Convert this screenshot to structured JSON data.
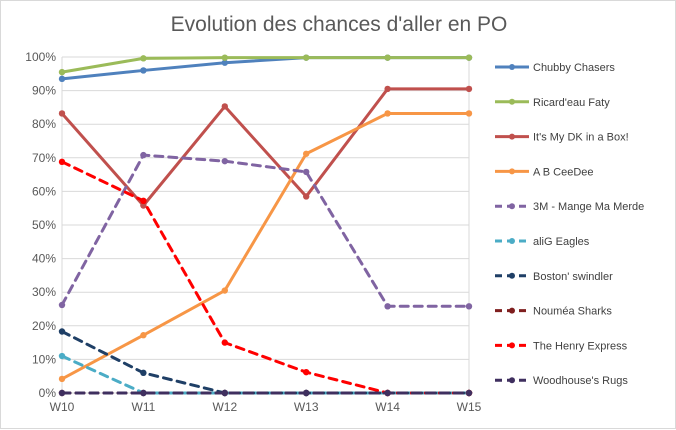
{
  "chart_data": {
    "type": "line",
    "title": "Evolution des chances d'aller en PO",
    "xlabel": "",
    "ylabel": "",
    "categories": [
      "W10",
      "W11",
      "W12",
      "W13",
      "W14",
      "W15"
    ],
    "y_ticks": [
      "0%",
      "10%",
      "20%",
      "30%",
      "40%",
      "50%",
      "60%",
      "70%",
      "80%",
      "90%",
      "100%"
    ],
    "ylim": [
      0,
      100
    ],
    "grid": "horizontal",
    "legend_position": "right",
    "series": [
      {
        "name": "Chubby Chasers",
        "color": "#4f81bd",
        "dashed": false,
        "values": [
          93.5,
          96,
          98.3,
          99.8,
          99.8,
          99.8
        ]
      },
      {
        "name": "Ricard'eau Faty",
        "color": "#9bbb59",
        "dashed": false,
        "values": [
          95.5,
          99.6,
          99.8,
          99.8,
          99.8,
          99.8
        ]
      },
      {
        "name": "It's My DK in a Box!",
        "color": "#c0504d",
        "dashed": false,
        "values": [
          83.2,
          55.8,
          85.3,
          58.5,
          90.5,
          90.5
        ]
      },
      {
        "name": "A B CeeDee",
        "color": "#f79646",
        "dashed": false,
        "values": [
          4.2,
          17.2,
          30.5,
          71.2,
          83.2,
          83.2
        ]
      },
      {
        "name": "3M - Mange Ma Merde",
        "color": "#8064a2",
        "dashed": true,
        "values": [
          26.2,
          70.8,
          69,
          65.8,
          25.8,
          25.8
        ]
      },
      {
        "name": "aliG Eagles",
        "color": "#4bacc6",
        "dashed": true,
        "values": [
          11,
          0,
          0,
          0,
          0,
          0
        ]
      },
      {
        "name": "Boston' swindler",
        "color": "#1f3f66",
        "dashed": true,
        "values": [
          18.3,
          6,
          0,
          0,
          0,
          0
        ]
      },
      {
        "name": "Nouméa Sharks",
        "color": "#7f1f1f",
        "dashed": true,
        "values": [
          0,
          0,
          0,
          0,
          0,
          0
        ]
      },
      {
        "name": "The Henry Express",
        "color": "#ff0000",
        "dashed": true,
        "values": [
          68.8,
          57.2,
          15,
          6.2,
          0,
          0
        ]
      },
      {
        "name": "Woodhouse's Rugs",
        "color": "#3f2f5f",
        "dashed": true,
        "values": [
          0,
          0,
          0,
          0,
          0,
          0
        ]
      }
    ]
  }
}
